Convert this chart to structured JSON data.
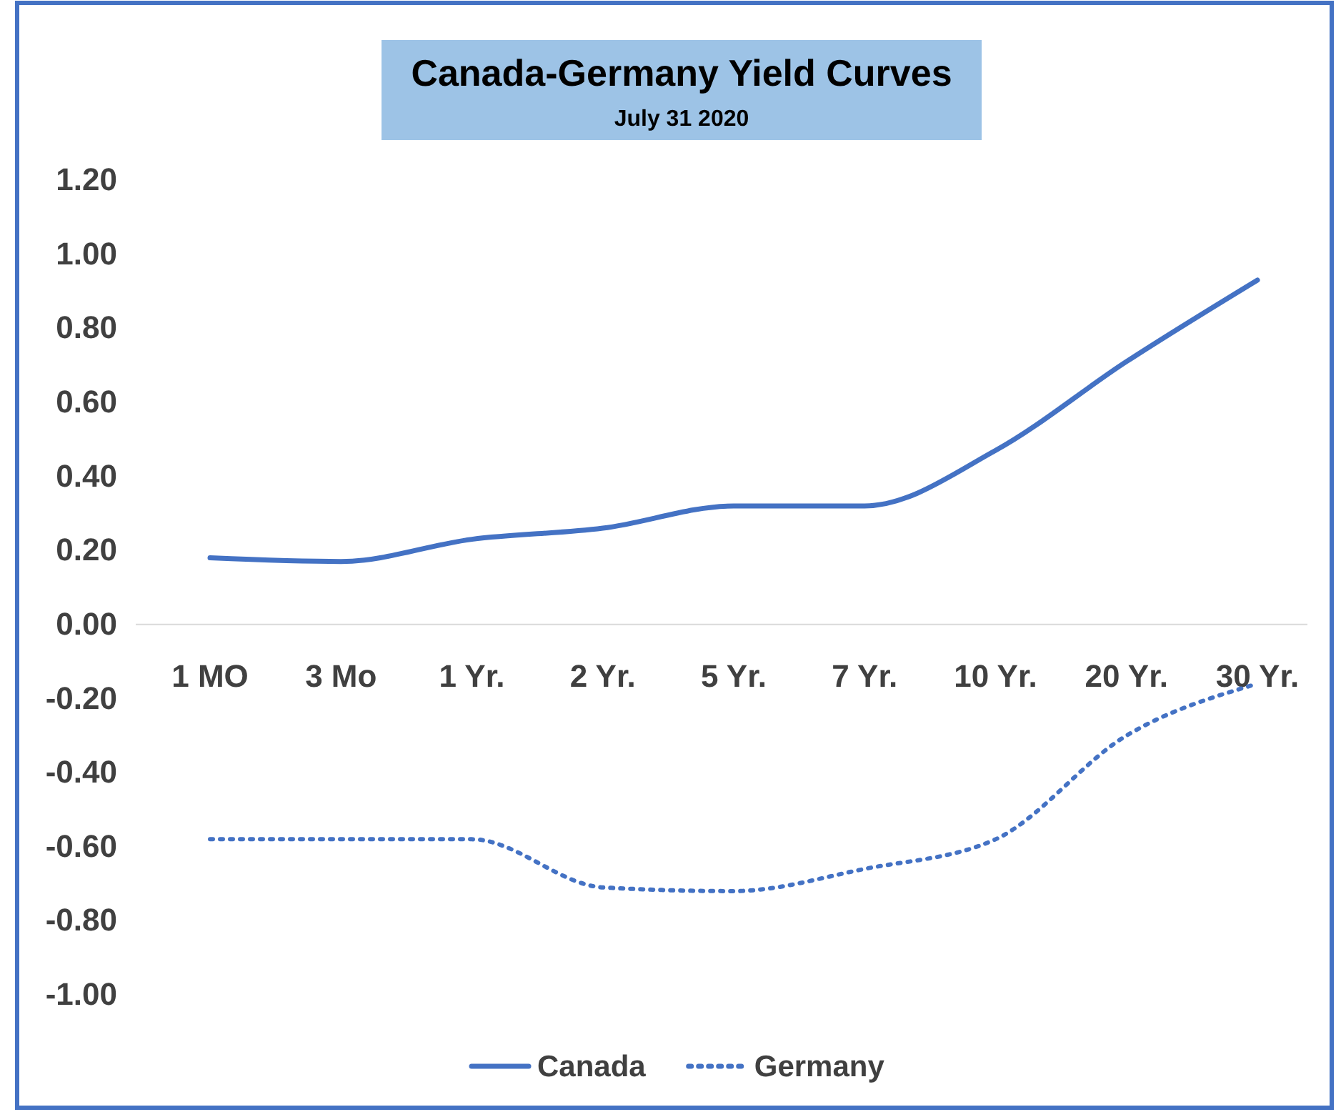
{
  "chart_data": {
    "type": "line",
    "title": "Canada-Germany Yield Curves",
    "subtitle": "July 31 2020",
    "categories": [
      "1 MO",
      "3 Mo",
      "1 Yr.",
      "2 Yr.",
      "5 Yr.",
      "7 Yr.",
      "10 Yr.",
      "20 Yr.",
      "30 Yr."
    ],
    "series": [
      {
        "name": "Canada",
        "color": "#4472c4",
        "line_style": "solid",
        "values": [
          0.18,
          0.17,
          0.23,
          0.26,
          0.32,
          0.32,
          0.47,
          0.71,
          0.93
        ]
      },
      {
        "name": "Germany",
        "color": "#4472c4",
        "line_style": "dotted",
        "values": [
          -0.58,
          -0.58,
          -0.58,
          -0.71,
          -0.72,
          -0.66,
          -0.58,
          -0.3,
          -0.16
        ]
      }
    ],
    "ylim": [
      -1,
      1.2
    ],
    "yticks": [
      {
        "value": -1,
        "label": "-1.00"
      },
      {
        "value": -0.8,
        "label": "-0.80"
      },
      {
        "value": -0.6,
        "label": "-0.60"
      },
      {
        "value": -0.4,
        "label": "-0.40"
      },
      {
        "value": -0.2,
        "label": "-0.20"
      },
      {
        "value": 0,
        "label": "0.00"
      },
      {
        "value": 0.2,
        "label": "0.20"
      },
      {
        "value": 0.4,
        "label": "0.40"
      },
      {
        "value": 0.6,
        "label": "0.60"
      },
      {
        "value": 0.8,
        "label": "0.80"
      },
      {
        "value": 1,
        "label": "1.00"
      },
      {
        "value": 1.2,
        "label": "1.20"
      }
    ],
    "grid": false,
    "legend": "bottom",
    "marker": "none"
  }
}
